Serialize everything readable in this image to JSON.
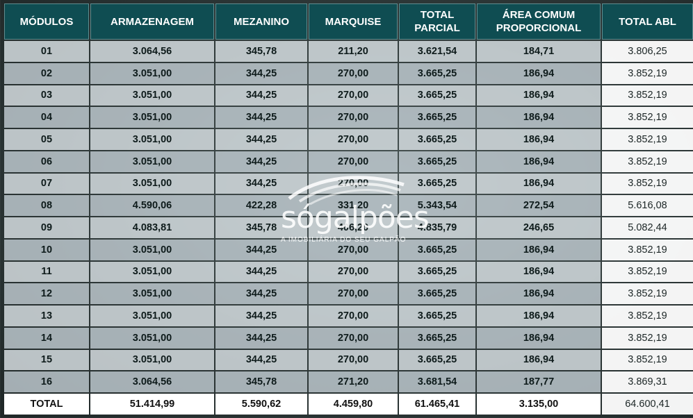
{
  "columns": [
    "MÓDULOS",
    "ARMAZENAGEM",
    "MEZANINO",
    "MARQUISE",
    "TOTAL PARCIAL",
    "ÁREA COMUM PROPORCIONAL",
    "TOTAL ABL"
  ],
  "rows": [
    [
      "01",
      "3.064,56",
      "345,78",
      "211,20",
      "3.621,54",
      "184,71",
      "3.806,25"
    ],
    [
      "02",
      "3.051,00",
      "344,25",
      "270,00",
      "3.665,25",
      "186,94",
      "3.852,19"
    ],
    [
      "03",
      "3.051,00",
      "344,25",
      "270,00",
      "3.665,25",
      "186,94",
      "3.852,19"
    ],
    [
      "04",
      "3.051,00",
      "344,25",
      "270,00",
      "3.665,25",
      "186,94",
      "3.852,19"
    ],
    [
      "05",
      "3.051,00",
      "344,25",
      "270,00",
      "3.665,25",
      "186,94",
      "3.852,19"
    ],
    [
      "06",
      "3.051,00",
      "344,25",
      "270,00",
      "3.665,25",
      "186,94",
      "3.852,19"
    ],
    [
      "07",
      "3.051,00",
      "344,25",
      "270,00",
      "3.665,25",
      "186,94",
      "3.852,19"
    ],
    [
      "08",
      "4.590,06",
      "422,28",
      "331,20",
      "5.343,54",
      "272,54",
      "5.616,08"
    ],
    [
      "09",
      "4.083,81",
      "345,78",
      "406,20",
      "4.835,79",
      "246,65",
      "5.082,44"
    ],
    [
      "10",
      "3.051,00",
      "344,25",
      "270,00",
      "3.665,25",
      "186,94",
      "3.852,19"
    ],
    [
      "11",
      "3.051,00",
      "344,25",
      "270,00",
      "3.665,25",
      "186,94",
      "3.852,19"
    ],
    [
      "12",
      "3.051,00",
      "344,25",
      "270,00",
      "3.665,25",
      "186,94",
      "3.852,19"
    ],
    [
      "13",
      "3.051,00",
      "344,25",
      "270,00",
      "3.665,25",
      "186,94",
      "3.852,19"
    ],
    [
      "14",
      "3.051,00",
      "344,25",
      "270,00",
      "3.665,25",
      "186,94",
      "3.852,19"
    ],
    [
      "15",
      "3.051,00",
      "344,25",
      "270,00",
      "3.665,25",
      "186,94",
      "3.852,19"
    ],
    [
      "16",
      "3.064,56",
      "345,78",
      "271,20",
      "3.681,54",
      "187,77",
      "3.869,31"
    ]
  ],
  "totals": [
    "TOTAL",
    "51.414,99",
    "5.590,62",
    "4.459,80",
    "61.465,41",
    "3.135,00",
    "64.600,41"
  ],
  "logo": {
    "wordmark": "sógalpões",
    "tagline": "A IMOBILIÁRIA DO SEU GALPÃO"
  },
  "colors": {
    "header_bg": "#0f4d52",
    "header_text": "#ffffff"
  }
}
